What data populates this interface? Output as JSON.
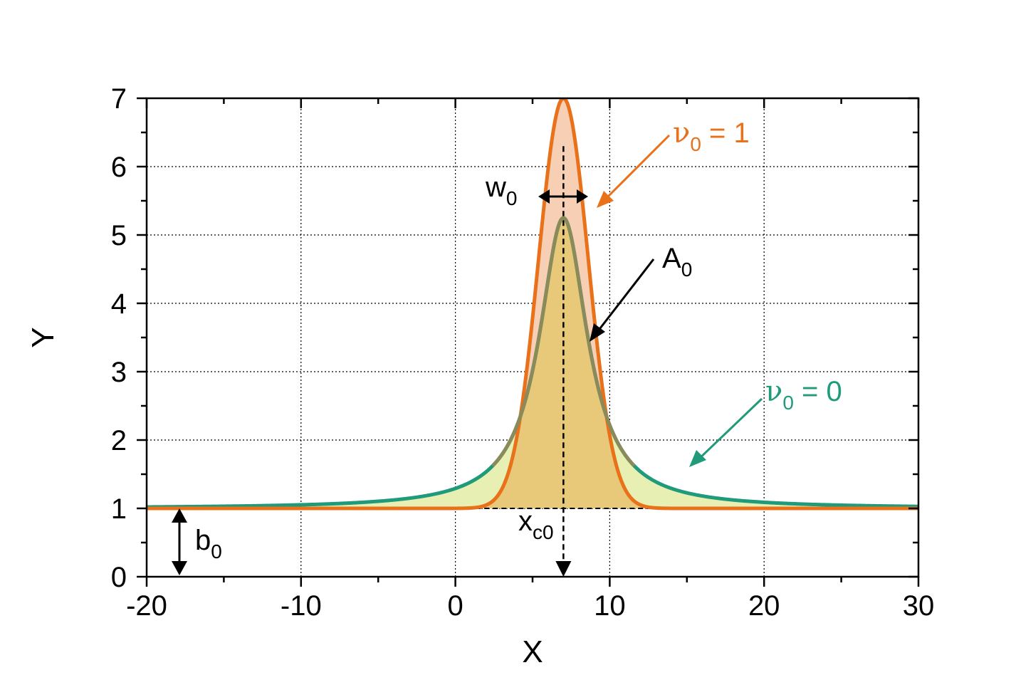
{
  "chart_data": {
    "type": "line",
    "title": "",
    "xlabel": "X",
    "ylabel": "Y",
    "xlim": [
      -20,
      30
    ],
    "ylim": [
      0,
      7
    ],
    "grid": true,
    "grid_style": "dotted",
    "x_major_ticks": [
      "-20",
      "-10",
      "0",
      "10",
      "20",
      "30"
    ],
    "y_major_ticks": [
      "0",
      "1",
      "2",
      "3",
      "4",
      "5",
      "6",
      "7"
    ],
    "parameters": {
      "xc0": 7,
      "w0": 3.8,
      "A0": 4.25,
      "b0": 1
    },
    "series": [
      {
        "name": "ν0 = 1",
        "shape": "gaussian",
        "color": "#e8711a",
        "fill": "#f7cfb5",
        "peak": 7.0
      },
      {
        "name": "ν0 = 0",
        "shape": "lorentzian",
        "color": "#1f9a7a",
        "fill": "#e8efb3",
        "peak": 5.25
      }
    ],
    "annotations": {
      "nu1": {
        "symbol": "ν",
        "sub": "0",
        "rest": " = 1"
      },
      "nu0": {
        "symbol": "ν",
        "sub": "0",
        "rest": " = 0"
      },
      "w0": {
        "main": "w",
        "sub": "0"
      },
      "a0": {
        "main": "A",
        "sub": "0"
      },
      "xc0": {
        "main": "x",
        "sub": "c0"
      },
      "b0": {
        "main": "b",
        "sub": "0"
      }
    },
    "colors": {
      "overlap_fill": "#e8c97a",
      "peak_line_color": "#8a8a5a"
    }
  }
}
